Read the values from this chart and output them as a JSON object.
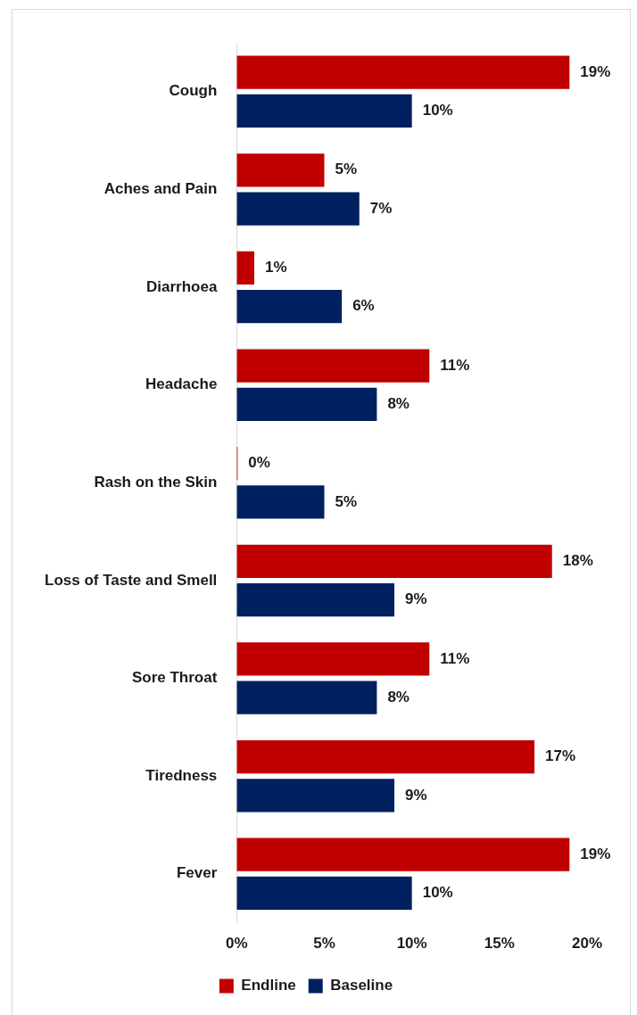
{
  "chart_data": {
    "type": "bar",
    "orientation": "horizontal",
    "categories": [
      "Cough",
      "Aches and Pain",
      "Diarrhoea",
      "Headache",
      "Rash on the Skin",
      "Loss of Taste and Smell",
      "Sore Throat",
      "Tiredness",
      "Fever"
    ],
    "series": [
      {
        "name": "Endline",
        "color": "#c00000",
        "values": [
          19,
          5,
          1,
          11,
          0,
          18,
          11,
          17,
          19
        ],
        "value_labels": [
          "19%",
          "5%",
          "1%",
          "11%",
          "0%",
          "18%",
          "11%",
          "17%",
          "19%"
        ]
      },
      {
        "name": "Baseline",
        "color": "#002060",
        "values": [
          10,
          7,
          6,
          8,
          5,
          9,
          8,
          9,
          10
        ],
        "value_labels": [
          "10%",
          "7%",
          "6%",
          "8%",
          "5%",
          "9%",
          "8%",
          "9%",
          "10%"
        ]
      }
    ],
    "xlim": [
      0,
      20
    ],
    "xticks": [
      {
        "value": 0,
        "label": "0%"
      },
      {
        "value": 5,
        "label": "5%"
      },
      {
        "value": 10,
        "label": "10%"
      },
      {
        "value": 15,
        "label": "15%"
      },
      {
        "value": 20,
        "label": "20%"
      }
    ],
    "grid": false,
    "legend": "bottom"
  }
}
